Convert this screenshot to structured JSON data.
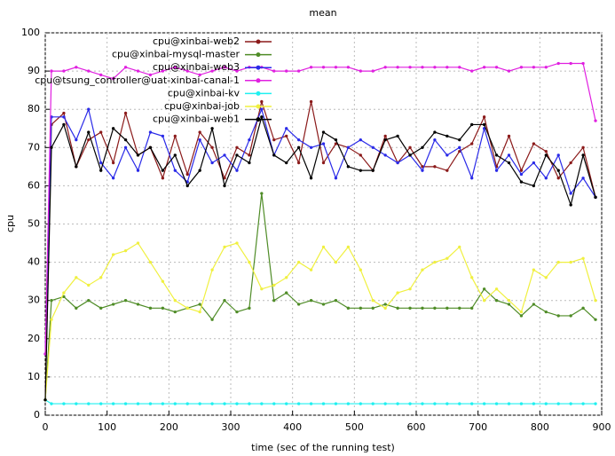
{
  "chart_data": {
    "type": "line",
    "title": "mean",
    "x_label": "time (sec of the running test)",
    "y_label": "cpu",
    "x": [
      0,
      10,
      30,
      50,
      70,
      90,
      110,
      130,
      150,
      170,
      190,
      210,
      230,
      250,
      270,
      290,
      310,
      330,
      350,
      370,
      390,
      410,
      430,
      450,
      470,
      490,
      510,
      530,
      550,
      570,
      590,
      610,
      630,
      650,
      670,
      690,
      710,
      730,
      750,
      770,
      790,
      810,
      830,
      850,
      870,
      890
    ],
    "xlim": [
      0,
      900
    ],
    "xticks": [
      0,
      100,
      200,
      300,
      400,
      500,
      600,
      700,
      800,
      900
    ],
    "ylim": [
      0,
      100
    ],
    "yticks": [
      0,
      10,
      20,
      30,
      40,
      50,
      60,
      70,
      80,
      90,
      100
    ],
    "grid": true,
    "legend": "top left",
    "series": [
      {
        "name": "cpu@xinbai-web2",
        "color": "#8b1a1a",
        "values": [
          4,
          76,
          79,
          65,
          72,
          74,
          66,
          79,
          68,
          70,
          62,
          73,
          63,
          74,
          70,
          62,
          70,
          68,
          82,
          72,
          73,
          66,
          82,
          66,
          71,
          70,
          68,
          64,
          73,
          66,
          70,
          65,
          65,
          64,
          69,
          71,
          78,
          65,
          73,
          64,
          71,
          69,
          62,
          66,
          70,
          57
        ]
      },
      {
        "name": "cpu@xinbai-mysql-master",
        "color": "#4f8c27",
        "values": [
          4,
          30,
          31,
          28,
          30,
          28,
          29,
          30,
          29,
          28,
          28,
          27,
          28,
          29,
          25,
          30,
          27,
          28,
          58,
          30,
          32,
          29,
          30,
          29,
          30,
          28,
          28,
          28,
          29,
          28,
          28,
          28,
          28,
          28,
          28,
          28,
          33,
          30,
          29,
          26,
          29,
          27,
          26,
          26,
          28,
          25
        ]
      },
      {
        "name": "cpu@xinbai-web3",
        "color": "#2a2ae8",
        "values": [
          16,
          78,
          78,
          72,
          80,
          66,
          62,
          70,
          64,
          74,
          73,
          64,
          61,
          72,
          66,
          68,
          64,
          72,
          80,
          68,
          75,
          72,
          70,
          71,
          62,
          70,
          72,
          70,
          68,
          66,
          68,
          64,
          72,
          68,
          70,
          62,
          75,
          64,
          68,
          63,
          66,
          62,
          68,
          58,
          62,
          57
        ]
      },
      {
        "name": "cpu@tsung_controller@uat-xinbai-canal-1",
        "color": "#e020e0",
        "values": [
          16,
          90,
          90,
          91,
          90,
          89,
          88,
          91,
          90,
          89,
          90,
          91,
          90,
          89,
          90,
          91,
          90,
          91,
          91,
          90,
          90,
          90,
          91,
          91,
          91,
          91,
          90,
          90,
          91,
          91,
          91,
          91,
          91,
          91,
          91,
          90,
          91,
          91,
          90,
          91,
          91,
          91,
          92,
          92,
          92,
          77
        ]
      },
      {
        "name": "cpu@xinbai-kv",
        "color": "#20f0f0",
        "values": [
          4,
          3,
          3,
          3,
          3,
          3,
          3,
          3,
          3,
          3,
          3,
          3,
          3,
          3,
          3,
          3,
          3,
          3,
          3,
          3,
          3,
          3,
          3,
          3,
          3,
          3,
          3,
          3,
          3,
          3,
          3,
          3,
          3,
          3,
          3,
          3,
          3,
          3,
          3,
          3,
          3,
          3,
          3,
          3,
          3,
          3
        ]
      },
      {
        "name": "cpu@xinbai-job",
        "color": "#f0f040",
        "values": [
          4,
          25,
          32,
          36,
          34,
          36,
          42,
          43,
          45,
          40,
          35,
          30,
          28,
          27,
          38,
          44,
          45,
          40,
          33,
          34,
          36,
          40,
          38,
          44,
          40,
          44,
          38,
          30,
          28,
          32,
          33,
          38,
          40,
          41,
          44,
          36,
          30,
          33,
          30,
          27,
          38,
          36,
          40,
          40,
          41,
          30
        ]
      },
      {
        "name": "cpu@xinbai-web1",
        "color": "#000000",
        "values": [
          4,
          70,
          76,
          65,
          74,
          64,
          75,
          72,
          68,
          70,
          64,
          68,
          60,
          64,
          75,
          60,
          68,
          66,
          78,
          68,
          66,
          70,
          62,
          74,
          72,
          65,
          64,
          64,
          72,
          73,
          68,
          70,
          74,
          73,
          72,
          76,
          76,
          68,
          66,
          61,
          60,
          68,
          64,
          55,
          68,
          57
        ]
      }
    ]
  }
}
